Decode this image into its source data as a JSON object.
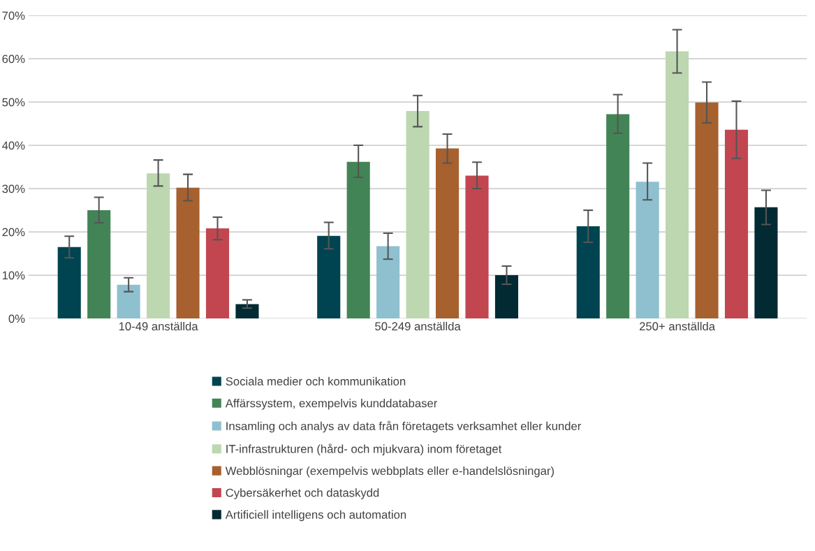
{
  "chart_data": {
    "type": "bar",
    "categories": [
      "10-49 anställda",
      "50-249 anställda",
      "250+ anställda"
    ],
    "series": [
      {
        "name": "Sociala medier och kommunikation",
        "color": "#014451",
        "values": [
          16.5,
          19.1,
          21.3
        ],
        "errors": [
          [
            14.0,
            19.0
          ],
          [
            16.1,
            22.2
          ],
          [
            17.6,
            25.0
          ]
        ]
      },
      {
        "name": "Affärssystem, exempelvis kunddatabaser",
        "color": "#438456",
        "values": [
          25.0,
          36.2,
          47.2
        ],
        "errors": [
          [
            22.1,
            28.0
          ],
          [
            32.6,
            40.0
          ],
          [
            42.8,
            51.7
          ]
        ]
      },
      {
        "name": "Insamling och analys av data från företagets verksamhet eller kunder",
        "color": "#8fc0cf",
        "values": [
          7.8,
          16.7,
          31.6
        ],
        "errors": [
          [
            6.2,
            9.4
          ],
          [
            13.7,
            19.7
          ],
          [
            27.4,
            35.9
          ]
        ]
      },
      {
        "name": "IT-infrastrukturen (hård- och mjukvara) inom företaget",
        "color": "#bdd7b0",
        "values": [
          33.5,
          47.9,
          61.7
        ],
        "errors": [
          [
            30.6,
            36.6
          ],
          [
            44.3,
            51.5
          ],
          [
            56.7,
            66.7
          ]
        ]
      },
      {
        "name": "Webblösningar (exempelvis webbplats eller e-handelslösningar)",
        "color": "#a6612f",
        "values": [
          30.2,
          39.3,
          49.9
        ],
        "errors": [
          [
            27.2,
            33.3
          ],
          [
            35.9,
            42.6
          ],
          [
            45.2,
            54.6
          ]
        ]
      },
      {
        "name": "Cybersäkerhet och dataskydd",
        "color": "#c24650",
        "values": [
          20.8,
          33.0,
          43.6
        ],
        "errors": [
          [
            18.2,
            23.4
          ],
          [
            30.0,
            36.1
          ],
          [
            37.0,
            50.2
          ]
        ]
      },
      {
        "name": "Artificiell intelligens och automation",
        "color": "#012a33",
        "values": [
          3.3,
          10.0,
          25.7
        ],
        "errors": [
          [
            2.4,
            4.3
          ],
          [
            7.9,
            12.1
          ],
          [
            21.7,
            29.6
          ]
        ]
      }
    ],
    "ylim": [
      0,
      70
    ],
    "yticks": [
      {
        "value": 0,
        "label": "0%"
      },
      {
        "value": 10,
        "label": "10%"
      },
      {
        "value": 20,
        "label": "20%"
      },
      {
        "value": 30,
        "label": "30%"
      },
      {
        "value": 40,
        "label": "40%"
      },
      {
        "value": 50,
        "label": "50%"
      },
      {
        "value": 60,
        "label": "60%"
      },
      {
        "value": 70,
        "label": "70%"
      }
    ],
    "grid": "y",
    "legend": "bottom"
  }
}
